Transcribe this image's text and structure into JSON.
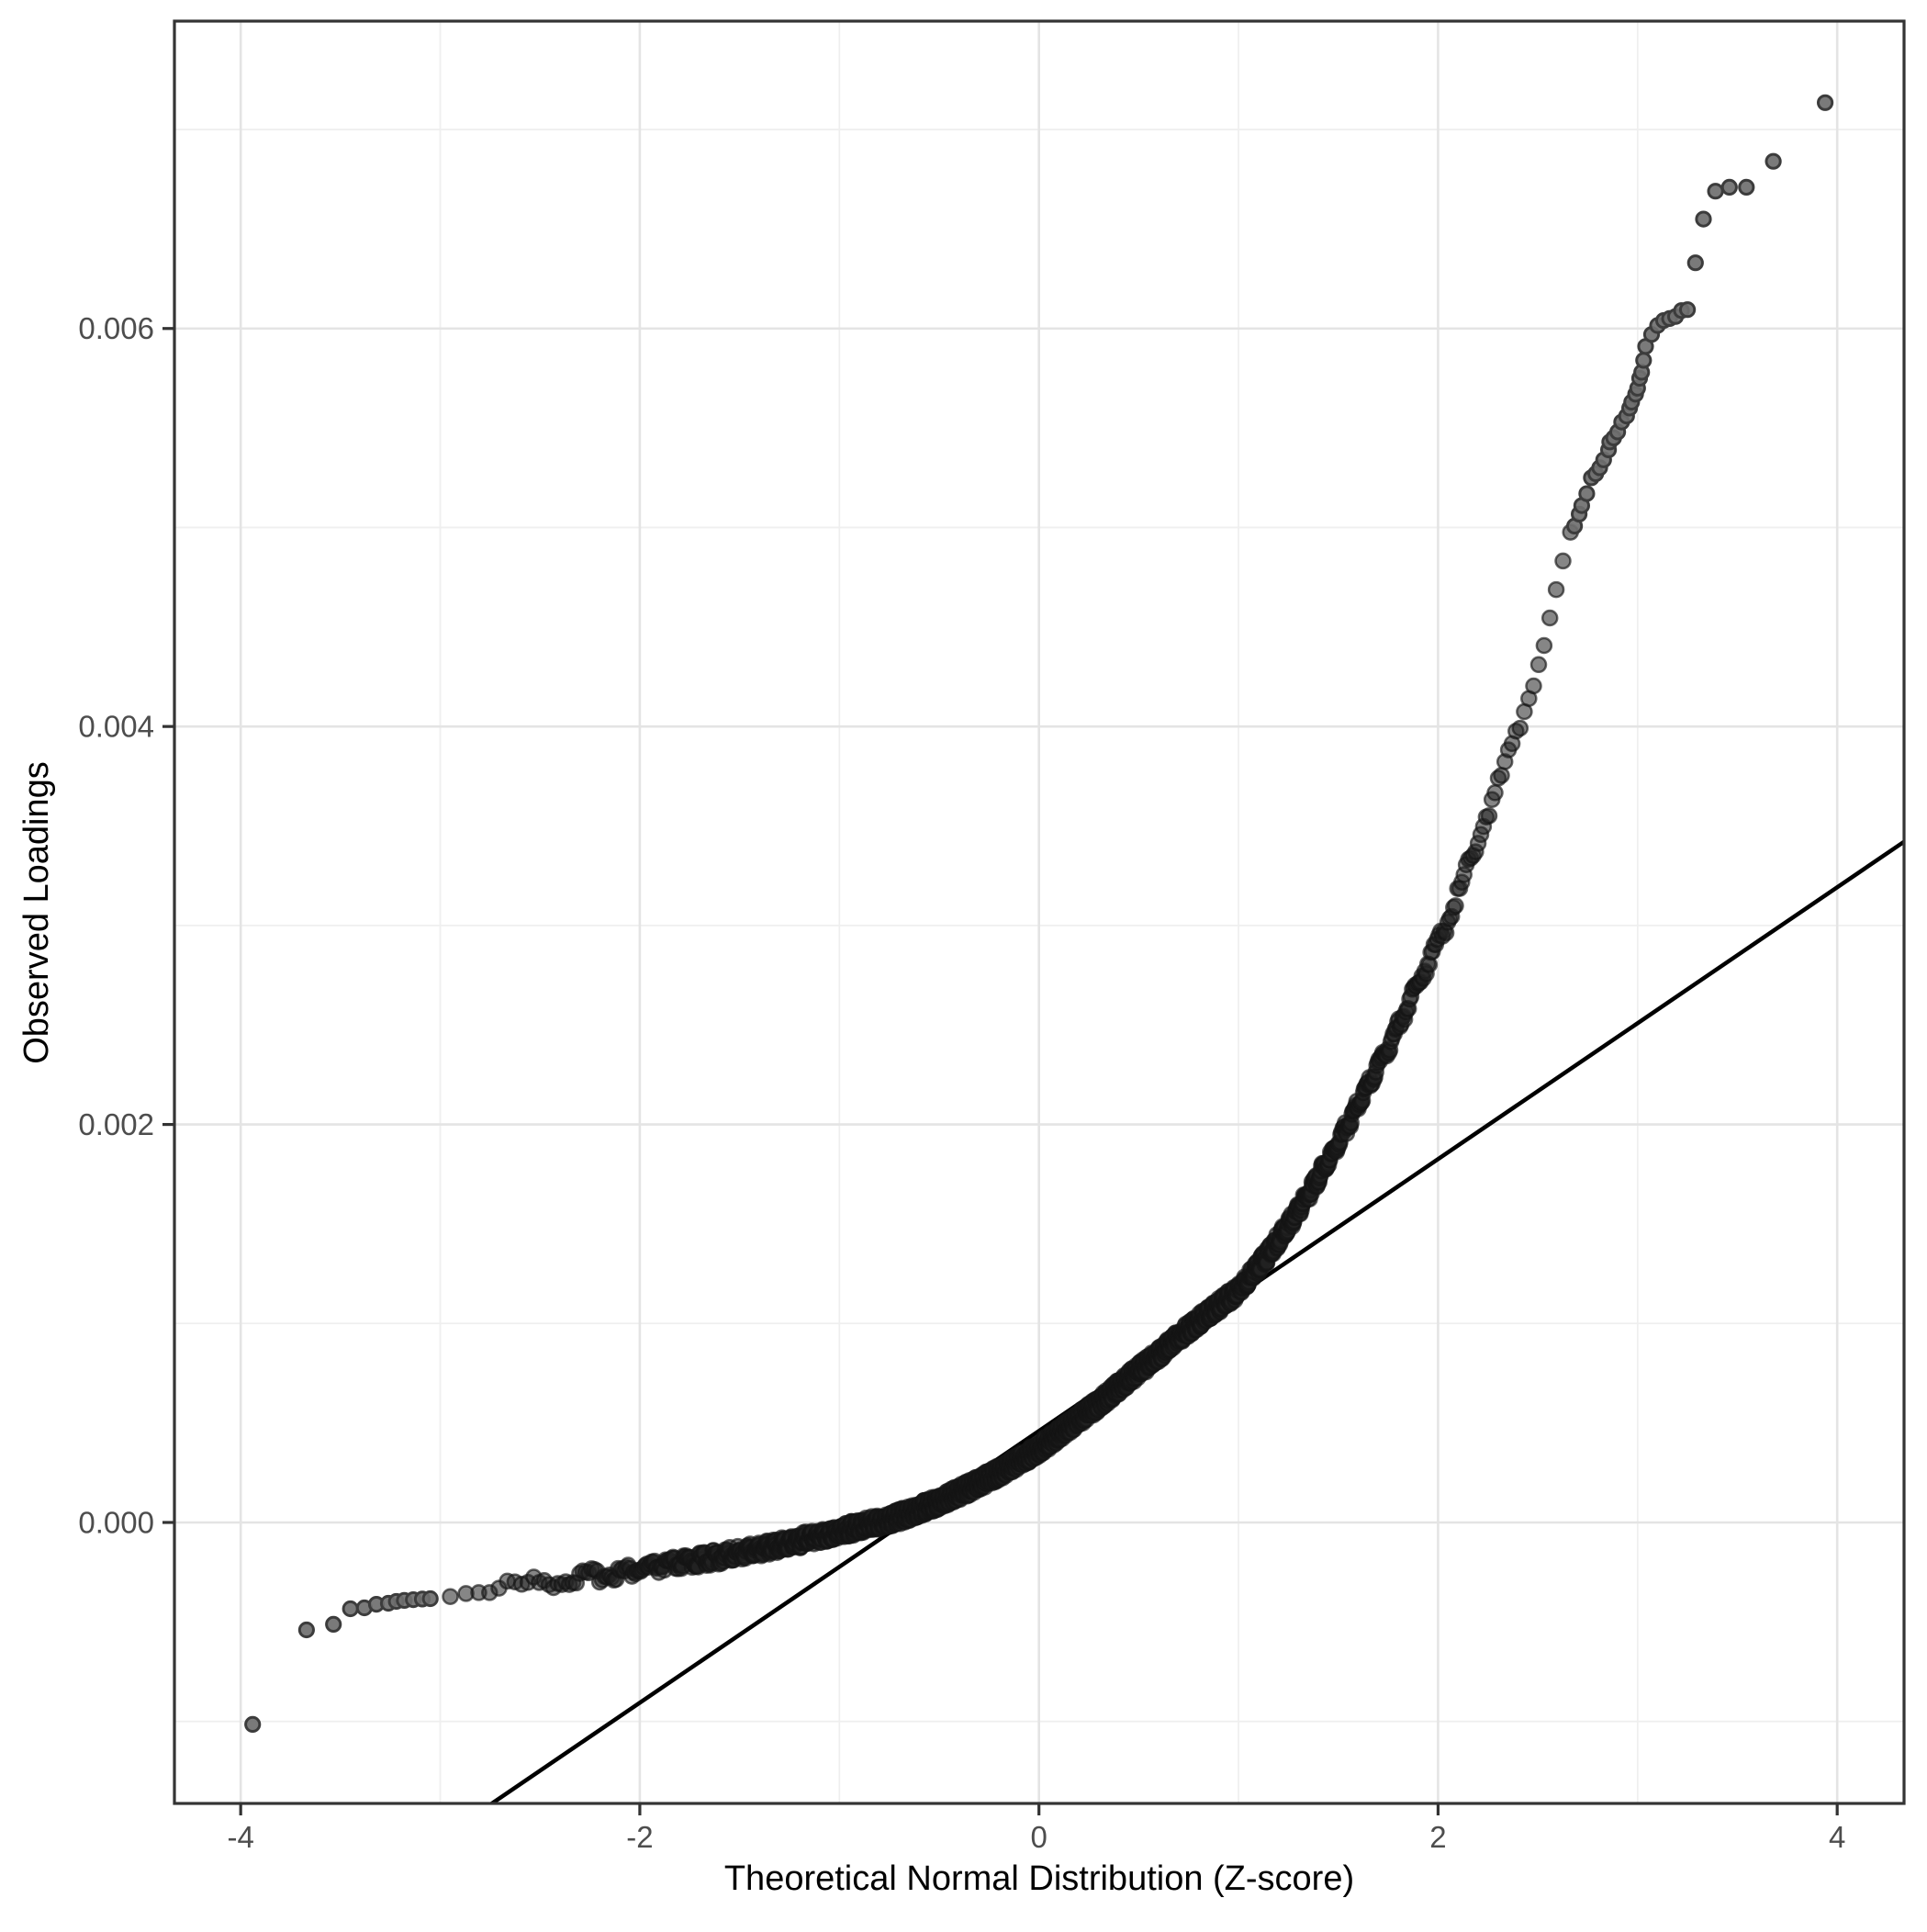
{
  "page": {
    "background": "#ffffff"
  },
  "chart_data": {
    "type": "scatter",
    "subtype": "qq-plot",
    "title": "",
    "xlabel": "Theoretical Normal Distribution (Z-score)",
    "ylabel": "Observed Loadings",
    "legend": "none",
    "grid": "on",
    "xlim": [
      -4.332,
      4.335
    ],
    "ylim": [
      -0.0014121,
      0.0075447
    ],
    "x_ticks": [
      {
        "value": -4,
        "label": "-4"
      },
      {
        "value": -2,
        "label": "-2"
      },
      {
        "value": 0,
        "label": "0"
      },
      {
        "value": 2,
        "label": "2"
      },
      {
        "value": 4,
        "label": "4"
      }
    ],
    "y_ticks": [
      {
        "value": 0.0,
        "label": "0.000"
      },
      {
        "value": 0.002,
        "label": "0.002"
      },
      {
        "value": 0.004,
        "label": "0.004"
      },
      {
        "value": 0.006,
        "label": "0.006"
      }
    ],
    "x_minor_breaks": [
      -3,
      -1,
      1,
      3
    ],
    "y_minor_breaks": [
      -0.001,
      0.001,
      0.003,
      0.005,
      0.007
    ],
    "reference_line": {
      "intercept": 0.00046,
      "slope": 0.000683
    },
    "qq_band": {
      "description": "dense monotone band of overlapping QQ points; y interpolated from control points",
      "n_points": 2200,
      "z_min": -3.05,
      "z_max": 2.68,
      "control_points": [
        [
          -3.1,
          -0.000386
        ],
        [
          -2.9,
          -0.000365
        ],
        [
          -2.7,
          -0.000342
        ],
        [
          -2.5,
          -0.00032
        ],
        [
          -2.3,
          -0.000296
        ],
        [
          -2.1,
          -0.000268
        ],
        [
          -1.95,
          -0.000247
        ],
        [
          -1.8,
          -0.000224
        ],
        [
          -1.6,
          -0.00019
        ],
        [
          -1.4,
          -0.000152
        ],
        [
          -1.2,
          -0.00011
        ],
        [
          -1.0,
          -6.4e-05
        ],
        [
          -0.85,
          -2.8e-05
        ],
        [
          -0.7,
          1e-05
        ],
        [
          -0.6,
          4.6e-05
        ],
        [
          -0.5,
          8.5e-05
        ],
        [
          -0.35,
          0.000155
        ],
        [
          -0.2,
          0.000232
        ],
        [
          -0.1,
          0.00029
        ],
        [
          0.0,
          0.00035
        ],
        [
          0.15,
          0.000465
        ],
        [
          0.3,
          0.000578
        ],
        [
          0.45,
          0.000705
        ],
        [
          0.6,
          0.000825
        ],
        [
          0.75,
          0.000955
        ],
        [
          0.9,
          0.00107
        ],
        [
          1.0,
          0.001145
        ],
        [
          1.15,
          0.00133
        ],
        [
          1.3,
          0.00155
        ],
        [
          1.45,
          0.0018
        ],
        [
          1.6,
          0.00208
        ],
        [
          1.75,
          0.00237
        ],
        [
          1.9,
          0.00269
        ],
        [
          2.05,
          0.003
        ],
        [
          2.2,
          0.00342
        ],
        [
          2.35,
          0.00382
        ],
        [
          2.5,
          0.00428
        ],
        [
          2.6,
          0.0047
        ],
        [
          2.68,
          0.005
        ]
      ]
    },
    "lower_tail_points": [
      [
        -3.94,
        -0.001015
      ],
      [
        -3.67,
        -0.00054
      ],
      [
        -3.535,
        -0.000512
      ],
      [
        -3.45,
        -0.000434
      ],
      [
        -3.38,
        -0.000429
      ],
      [
        -3.32,
        -0.000411
      ],
      [
        -3.26,
        -0.000406
      ],
      [
        -3.22,
        -0.000397
      ],
      [
        -3.18,
        -0.000392
      ],
      [
        -3.135,
        -0.000388
      ],
      [
        -3.09,
        -0.000385
      ],
      [
        -3.05,
        -0.000383
      ]
    ],
    "upper_tail_points": [
      [
        2.684,
        0.005007
      ],
      [
        2.707,
        0.005067
      ],
      [
        2.72,
        0.00511
      ],
      [
        2.745,
        0.00517
      ],
      [
        2.768,
        0.00525
      ],
      [
        2.79,
        0.00527
      ],
      [
        2.81,
        0.0053
      ],
      [
        2.83,
        0.00534
      ],
      [
        2.854,
        0.00539
      ],
      [
        2.86,
        0.00543
      ],
      [
        2.88,
        0.00545
      ],
      [
        2.9,
        0.00548
      ],
      [
        2.92,
        0.00553
      ],
      [
        2.945,
        0.00556
      ],
      [
        2.96,
        0.0056
      ],
      [
        2.97,
        0.00563
      ],
      [
        2.99,
        0.00567
      ],
      [
        3.0,
        0.0057
      ],
      [
        3.01,
        0.00575
      ],
      [
        3.02,
        0.00578
      ],
      [
        3.03,
        0.00584
      ],
      [
        3.04,
        0.00591
      ],
      [
        3.07,
        0.00597
      ],
      [
        3.1,
        0.006015
      ],
      [
        3.13,
        0.00604
      ],
      [
        3.16,
        0.00605
      ],
      [
        3.19,
        0.00606
      ],
      [
        3.22,
        0.00609
      ],
      [
        3.25,
        0.006095
      ],
      [
        3.29,
        0.00633
      ],
      [
        3.33,
        0.00655
      ],
      [
        3.39,
        0.00669
      ],
      [
        3.46,
        0.00671
      ],
      [
        3.545,
        0.00671
      ],
      [
        3.68,
        0.00684
      ],
      [
        3.94,
        0.007135
      ]
    ],
    "style": {
      "background": "#ffffff",
      "panel_border": "#343434",
      "grid_major": "#e4e4e4",
      "grid_minor": "#efefef",
      "tick_color": "#333333",
      "tick_label_color": "#4d4d4d",
      "axis_title_color": "#000000",
      "point_fill": "#6f6f6f",
      "point_stroke": "#3c3c3c",
      "band_point_fill": "#232323",
      "reference_line_color": "#000000"
    }
  }
}
